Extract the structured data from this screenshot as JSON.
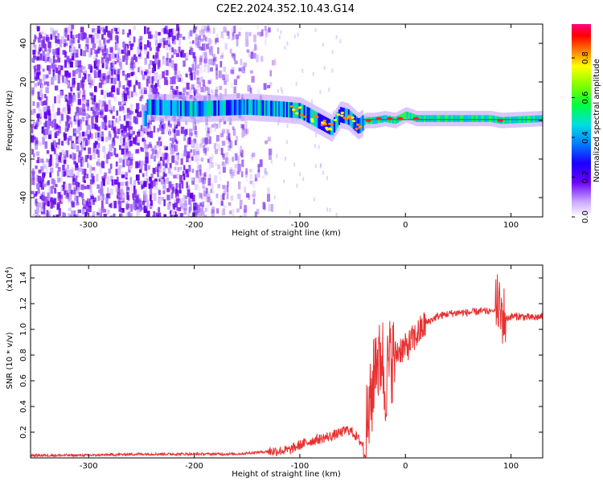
{
  "figure": {
    "title": "C2E2.2024.352.10.43.G14"
  },
  "chart_data": [
    {
      "type": "heatmap",
      "title": "C2E2.2024.352.10.43.G14",
      "xlabel": "Height of straight line (km)",
      "ylabel": "Frequency (Hz)",
      "xlim": [
        -355,
        130
      ],
      "ylim": [
        -50,
        50
      ],
      "x_ticks": [
        -300,
        -200,
        -100,
        0,
        100
      ],
      "y_ticks": [
        -40,
        -20,
        0,
        20,
        40
      ],
      "colorbar": {
        "label": "Normalized spectral amplitude",
        "range": [
          0,
          0.97
        ],
        "ticks": [
          0.0,
          0.2,
          0.4,
          0.6,
          0.8
        ]
      },
      "ridge": {
        "description_points": [
          [
            -245,
            7
          ],
          [
            -200,
            6
          ],
          [
            -150,
            7
          ],
          [
            -120,
            6
          ],
          [
            -100,
            5
          ],
          [
            -90,
            2
          ],
          [
            -80,
            -1
          ],
          [
            -70,
            -4
          ],
          [
            -62,
            3
          ],
          [
            -55,
            2
          ],
          [
            -45,
            -3
          ],
          [
            -38,
            0
          ],
          [
            -30,
            0
          ],
          [
            -20,
            1
          ],
          [
            -10,
            0
          ],
          [
            0,
            3
          ],
          [
            10,
            1
          ],
          [
            40,
            1
          ],
          [
            80,
            1
          ],
          [
            90,
            0
          ],
          [
            130,
            1
          ]
        ],
        "peak_amplitude_near": [
          [
            -35,
            0
          ],
          [
            -25,
            1
          ],
          [
            -15,
            1
          ],
          [
            -5,
            1
          ],
          [
            10,
            1
          ],
          [
            90,
            0
          ]
        ]
      }
    },
    {
      "type": "line",
      "xlabel": "Height of straight line (km)",
      "ylabel": "SNR (10 * v/v)",
      "y_scale_label": "(x10",
      "y_scale_exp": "4",
      "xlim": [
        -355,
        130
      ],
      "ylim": [
        0,
        1.5
      ],
      "x_ticks": [
        -300,
        -200,
        -100,
        0,
        100
      ],
      "y_ticks": [
        0.2,
        0.4,
        0.6,
        0.8,
        1.0,
        1.2,
        1.4
      ],
      "color": "#e83030",
      "series": [
        {
          "x": [
            -355,
            -300,
            -250,
            -200,
            -160,
            -130,
            -110,
            -100,
            -90,
            -80,
            -70,
            -60,
            -55,
            -50,
            -45,
            -40,
            -35,
            -30,
            -28,
            -25,
            -22,
            -20,
            -15,
            -10,
            -5,
            0,
            5,
            10,
            15,
            20,
            30,
            40,
            50,
            60,
            70,
            80,
            85,
            88,
            90,
            92,
            95,
            100,
            110,
            120,
            130
          ],
          "y": [
            0.02,
            0.02,
            0.03,
            0.03,
            0.03,
            0.05,
            0.06,
            0.1,
            0.13,
            0.15,
            0.17,
            0.2,
            0.22,
            0.2,
            0.15,
            0.1,
            0.3,
            0.6,
            0.85,
            0.7,
            0.85,
            0.55,
            0.75,
            0.8,
            0.85,
            0.85,
            0.9,
            0.95,
            1.0,
            1.05,
            1.1,
            1.12,
            1.13,
            1.13,
            1.14,
            1.14,
            1.15,
            1.2,
            1.1,
            1.12,
            1.08,
            1.1,
            1.1,
            1.09,
            1.1
          ]
        }
      ]
    }
  ]
}
